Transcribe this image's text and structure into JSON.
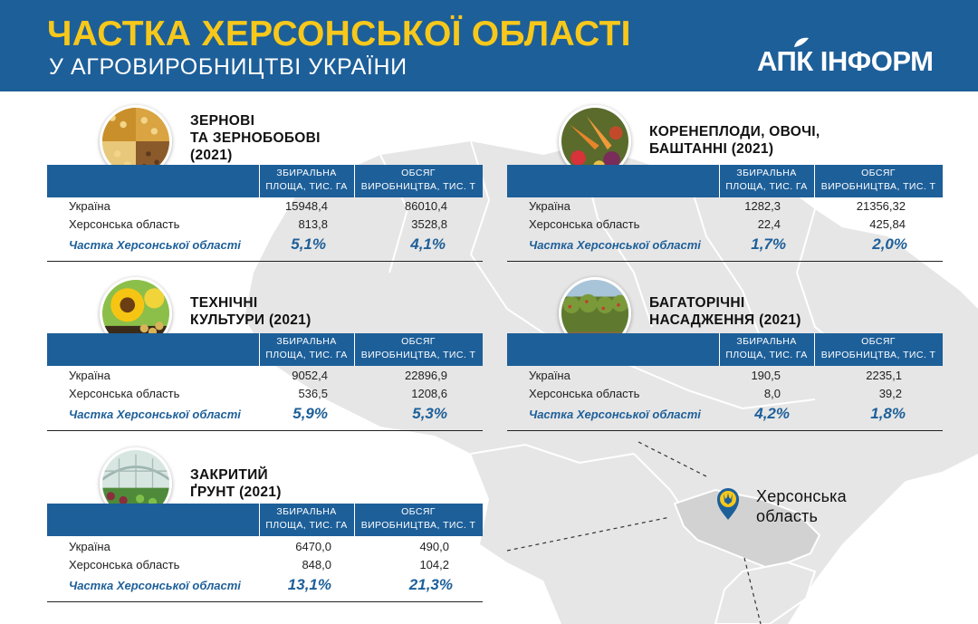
{
  "header": {
    "title": "ЧАСТКА ХЕРСОНСЬКОЇ ОБЛАСТІ",
    "subtitle": "У АГРОВИРОБНИЦТВІ УКРАЇНИ",
    "logo": "АПК ІНФОРМ"
  },
  "colors": {
    "brand_blue": "#1d5f99",
    "title_yellow": "#f7c81b",
    "map_grey": "#e6e6e6"
  },
  "table_headers": {
    "col1_line1": "ЗБИРАЛЬНА",
    "col1_line2": "ПЛОЩА, ТИС. ГА",
    "col2_line1": "ОБСЯГ",
    "col2_line2": "ВИРОБНИЦТВА, ТИС. Т"
  },
  "row_labels": {
    "ukraine": "Україна",
    "kherson": "Херсонська область",
    "share": "Частка Херсонської області"
  },
  "blocks": [
    {
      "id": "grain",
      "icon": "grain-photo-icon",
      "title_line1": "ЗЕРНОВІ",
      "title_line2": "ТА ЗЕРНОБОБОВІ",
      "title_line3": "(2021)",
      "ukraine": [
        "15948,4",
        "86010,4"
      ],
      "kherson": [
        "813,8",
        "3528,8"
      ],
      "share": [
        "5,1%",
        "4,1%"
      ]
    },
    {
      "id": "technical",
      "icon": "sunflower-photo-icon",
      "title_line1": "ТЕХНІЧНІ",
      "title_line2": "КУЛЬТУРИ (2021)",
      "title_line3": "",
      "ukraine": [
        "9052,4",
        "22896,9"
      ],
      "kherson": [
        "536,5",
        "1208,6"
      ],
      "share": [
        "5,9%",
        "5,3%"
      ]
    },
    {
      "id": "greenhouse",
      "icon": "greenhouse-photo-icon",
      "title_line1": "ЗАКРИТИЙ",
      "title_line2": "ҐРУНТ (2021)",
      "title_line3": "",
      "ukraine": [
        "6470,0",
        "490,0"
      ],
      "kherson": [
        "848,0",
        "104,2"
      ],
      "share": [
        "13,1%",
        "21,3%"
      ]
    },
    {
      "id": "vegetables",
      "icon": "vegetables-photo-icon",
      "title_line1": "КОРЕНЕПЛОДИ, ОВОЧІ,",
      "title_line2": "БАШТАННІ (2021)",
      "title_line3": "",
      "ukraine": [
        "1282,3",
        "21356,32"
      ],
      "kherson": [
        "22,4",
        "425,84"
      ],
      "share": [
        "1,7%",
        "2,0%"
      ]
    },
    {
      "id": "orchards",
      "icon": "orchard-photo-icon",
      "title_line1": "БАГАТОРІЧНІ",
      "title_line2": "НАСАДЖЕННЯ (2021)",
      "title_line3": "",
      "ukraine": [
        "190,5",
        "2235,1"
      ],
      "kherson": [
        "8,0",
        "39,2"
      ],
      "share": [
        "4,2%",
        "1,8%"
      ]
    }
  ],
  "map": {
    "region_label_line1": "Херсонська",
    "region_label_line2": "область",
    "pin_icon": "trident-pin-icon"
  }
}
